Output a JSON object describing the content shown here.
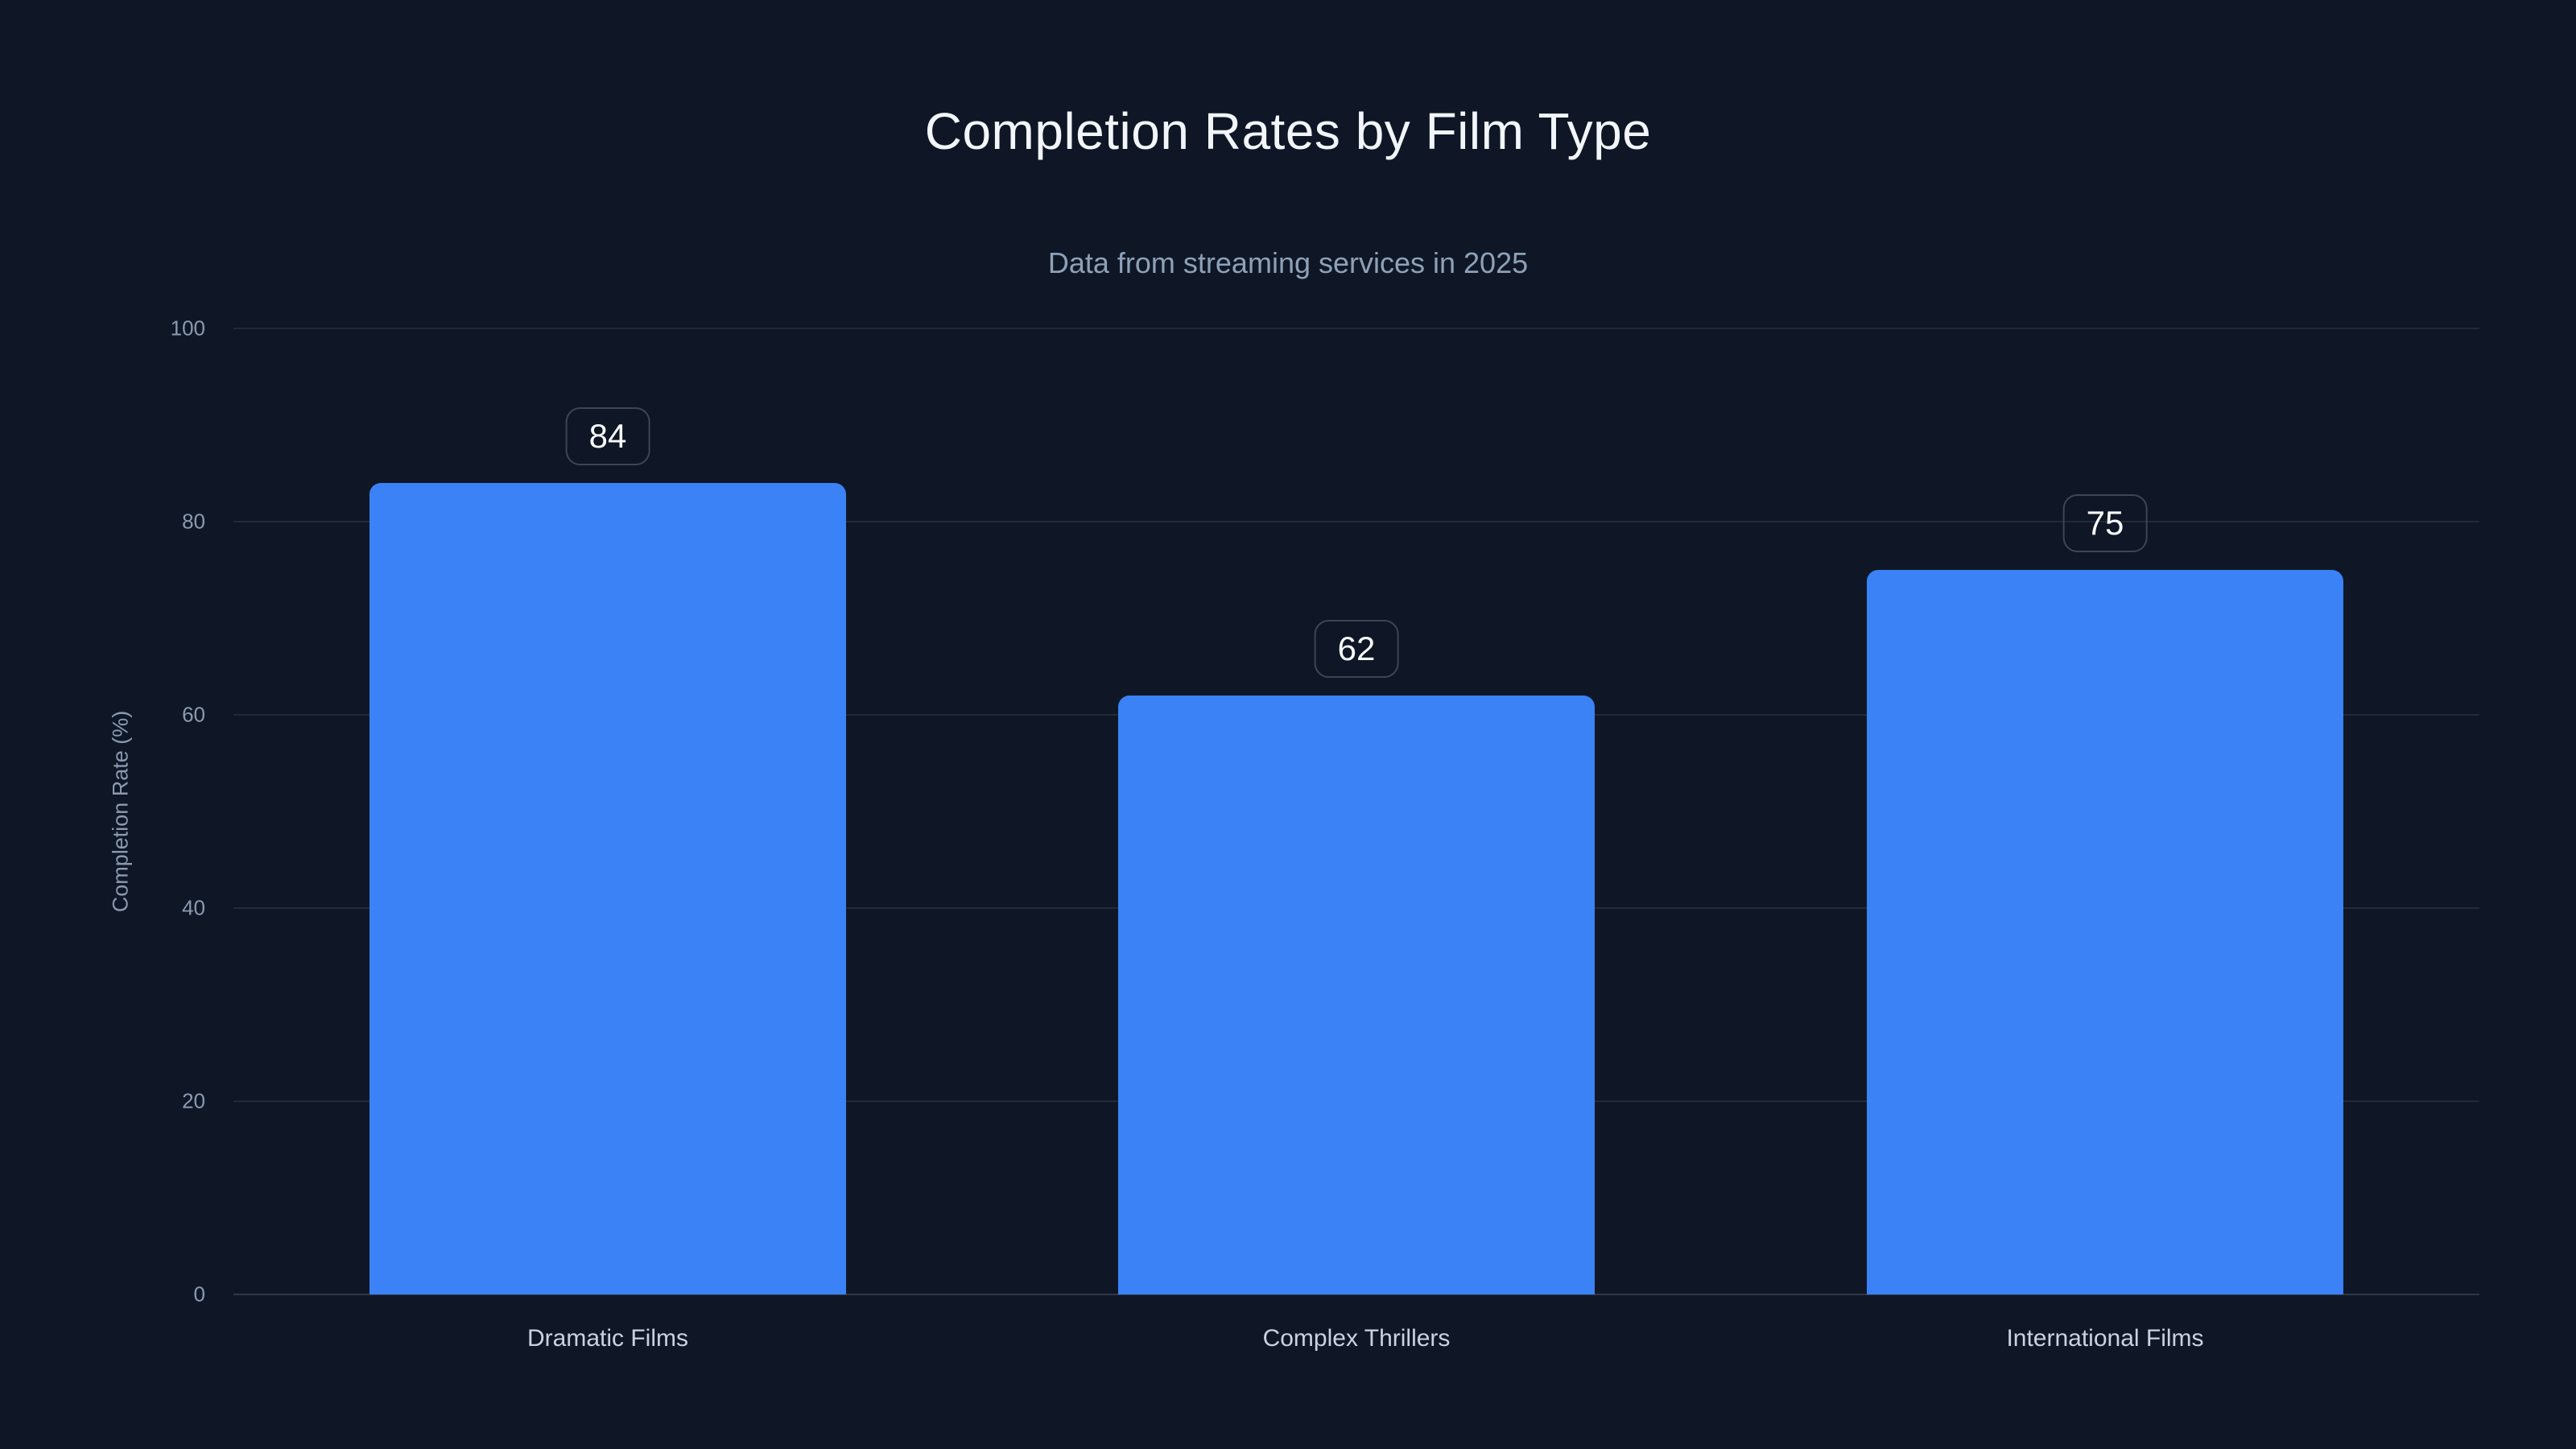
{
  "chart_data": {
    "type": "bar",
    "title": "Completion Rates by Film Type",
    "subtitle": "Data from streaming services in 2025",
    "ylabel": "Completion Rate (%)",
    "xlabel": "",
    "categories": [
      "Dramatic Films",
      "Complex Thrillers",
      "International Films"
    ],
    "values": [
      84,
      62,
      75
    ],
    "value_labels": [
      "84",
      "62",
      "75"
    ],
    "ylim": [
      0,
      100
    ],
    "yticks": [
      0,
      20,
      40,
      60,
      80,
      100
    ],
    "grid": "horizontal",
    "legend": "none",
    "colors": {
      "background": "#0f1726",
      "bar": "#3b82f6",
      "title": "#f2f5f9",
      "subtitle": "#8ea1b8",
      "tick_label": "#8b9ab0",
      "category_label": "#c9d3e0",
      "gridline": "rgba(148,163,184,0.14)",
      "axis_line": "rgba(148,163,184,0.24)",
      "badge_border": "#3b4656",
      "badge_text": "#f8fafc"
    }
  }
}
